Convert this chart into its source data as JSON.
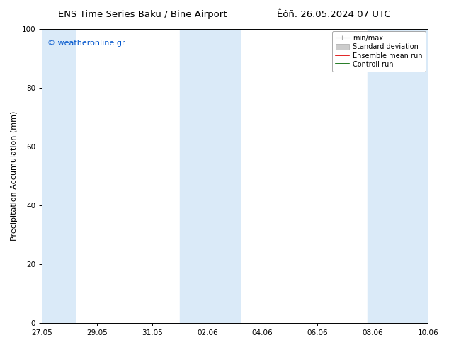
{
  "title_left": "ENS Time Series Baku / Bine Airport",
  "title_right": "Êôñ. 26.05.2024 07 UTC",
  "ylabel": "Precipitation Accumulation (mm)",
  "watermark": "© weatheronline.gr",
  "watermark_color": "#0055cc",
  "ylim": [
    0,
    100
  ],
  "yticks": [
    0,
    20,
    40,
    60,
    80,
    100
  ],
  "xtick_labels": [
    "27.05",
    "29.05",
    "31.05",
    "02.06",
    "04.06",
    "06.06",
    "08.06",
    "10.06"
  ],
  "shaded_color": "#daeaf8",
  "background_color": "#ffffff",
  "plot_bg_color": "#ffffff",
  "title_fontsize": 9.5,
  "axis_label_fontsize": 8,
  "tick_fontsize": 7.5,
  "watermark_fontsize": 8,
  "legend_fontsize": 7
}
